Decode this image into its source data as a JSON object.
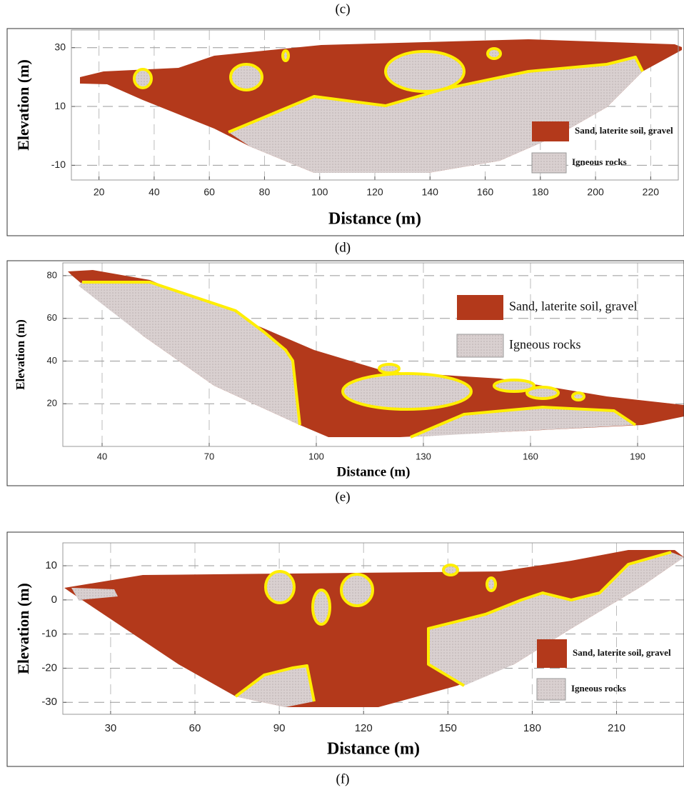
{
  "top_caption": "(c)",
  "chart_data": [
    {
      "type": "cross-section",
      "caption": "(d)",
      "xlabel": "Distance (m)",
      "ylabel": "Elevation (m)",
      "xlim": [
        10,
        230
      ],
      "xticks": [
        20,
        40,
        60,
        80,
        100,
        120,
        140,
        160,
        180,
        200,
        220
      ],
      "ylim": [
        -15,
        36
      ],
      "yticks": [
        30,
        10,
        -10
      ],
      "grid": true,
      "series": [
        {
          "name": "Sand, laterite soil, gravel",
          "color": "#b3391b"
        },
        {
          "name": "Igneous rocks",
          "color": "#d6cdcd"
        }
      ]
    },
    {
      "type": "cross-section",
      "caption": "(e)",
      "xlabel": "Distance (m)",
      "ylabel": "Elevation (m)",
      "xlim": [
        29,
        203
      ],
      "xticks": [
        40,
        70,
        100,
        130,
        160,
        190
      ],
      "ylim": [
        0,
        86
      ],
      "yticks": [
        20,
        40,
        60,
        80
      ],
      "grid": true,
      "series": [
        {
          "name": "Sand, laterite soil, gravel",
          "color": "#b3391b"
        },
        {
          "name": "Igneous rocks",
          "color": "#d6cdcd"
        }
      ]
    },
    {
      "type": "cross-section",
      "caption": "(f)",
      "xlabel": "Distance (m)",
      "ylabel": "Elevation (m)",
      "xlim": [
        13,
        234
      ],
      "xticks": [
        30,
        60,
        90,
        120,
        150,
        180,
        210
      ],
      "ylim": [
        -33.5,
        16.7
      ],
      "yticks": [
        10,
        0,
        -10,
        -20,
        -30
      ],
      "grid": true,
      "series": [
        {
          "name": "Sand, laterite soil, gravel",
          "color": "#b3391b"
        },
        {
          "name": "Igneous rocks",
          "color": "#d6cdcd"
        }
      ]
    }
  ]
}
